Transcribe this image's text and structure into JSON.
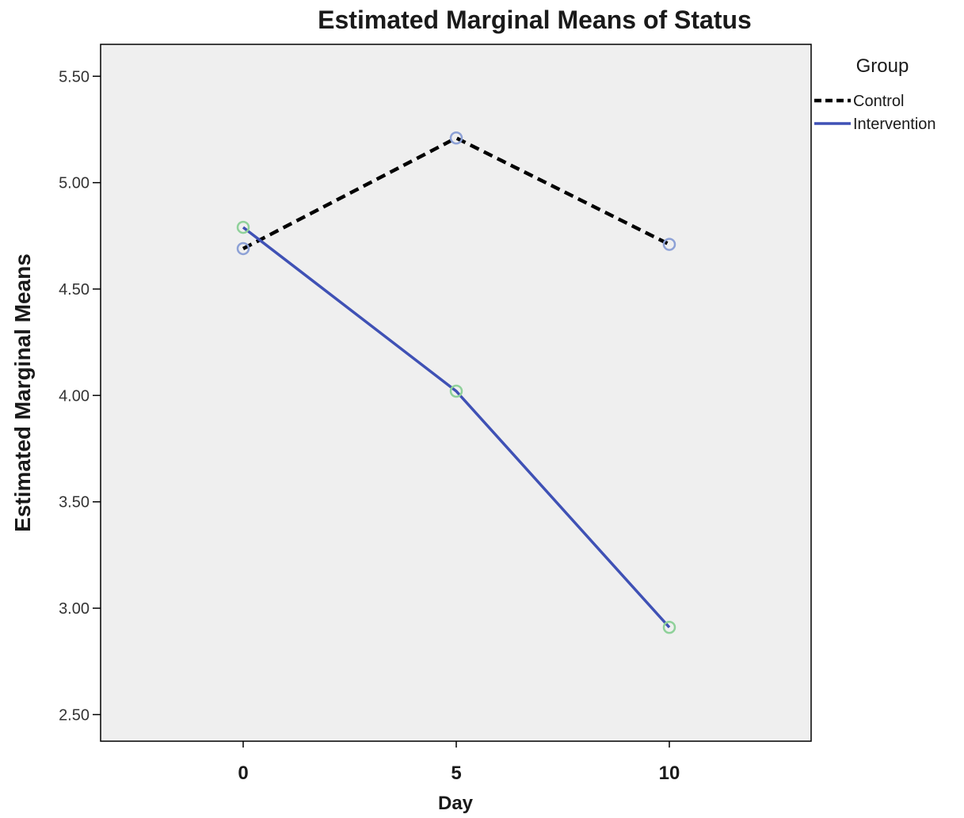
{
  "chart_data": {
    "type": "line",
    "title": "Estimated Marginal Means of Status",
    "xlabel": "Day",
    "ylabel": "Estimated Marginal Means",
    "x": [
      0,
      5,
      10
    ],
    "x_tick_labels": [
      "0",
      "5",
      "10"
    ],
    "ylim": [
      2.375,
      5.65
    ],
    "y_ticks": [
      2.5,
      3.0,
      3.5,
      4.0,
      4.5,
      5.0,
      5.5
    ],
    "y_tick_labels": [
      "2.50",
      "3.00",
      "3.50",
      "4.00",
      "4.50",
      "5.00",
      "5.50"
    ],
    "grid": false,
    "legend_title": "Group",
    "legend_position": "right",
    "plot_background": "#efefef",
    "series": [
      {
        "name": "Control",
        "values": [
          4.69,
          5.21,
          4.71
        ],
        "color": "#000000",
        "line_style": "dashed",
        "marker_color": "#8da1d6"
      },
      {
        "name": "Intervention",
        "values": [
          4.79,
          4.02,
          2.91
        ],
        "color": "#3f51b5",
        "line_style": "solid",
        "marker_color": "#8fd19a"
      }
    ]
  }
}
